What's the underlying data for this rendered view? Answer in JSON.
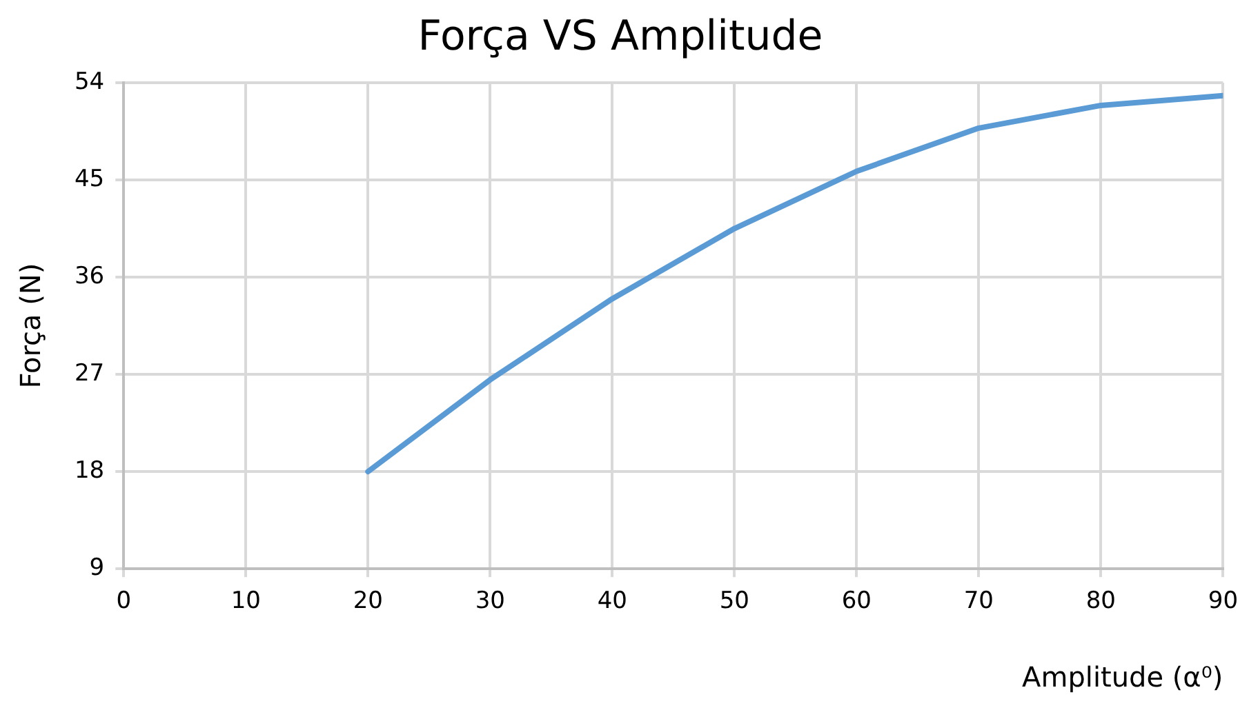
{
  "chart_data": {
    "type": "line",
    "title": "Força VS Amplitude",
    "xlabel": "Amplitude (α⁰)",
    "ylabel": "Força (N)",
    "x": [
      20,
      30,
      40,
      50,
      60,
      70,
      80,
      90
    ],
    "series": [
      {
        "color": "#5b9bd5",
        "values": [
          18,
          26.5,
          34,
          40.5,
          45.8,
          49.8,
          51.9,
          52.8
        ]
      }
    ],
    "xlim": [
      0,
      90
    ],
    "xticks": [
      0,
      10,
      20,
      30,
      40,
      50,
      60,
      70,
      80,
      90
    ],
    "ylim": [
      9,
      54
    ],
    "yticks": [
      9,
      18,
      27,
      36,
      45,
      54
    ],
    "grid": true,
    "legend": false,
    "marker": "none",
    "line_style": "solid"
  }
}
